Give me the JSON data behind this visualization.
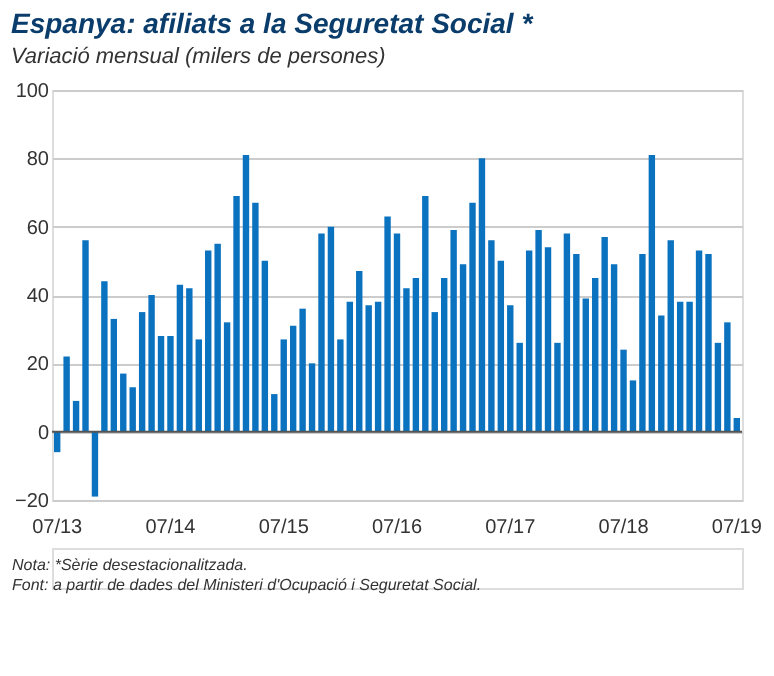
{
  "chart_data": {
    "type": "bar",
    "title": "Espanya: afiliats a la Seguretat Social *",
    "subtitle": "Variació mensual (milers de persones)",
    "categories": [
      "07/13",
      null,
      null,
      null,
      null,
      null,
      null,
      null,
      null,
      null,
      null,
      null,
      "07/14",
      null,
      null,
      null,
      null,
      null,
      null,
      null,
      null,
      null,
      null,
      null,
      "07/15",
      null,
      null,
      null,
      null,
      null,
      null,
      null,
      null,
      null,
      null,
      null,
      "07/16",
      null,
      null,
      null,
      null,
      null,
      null,
      null,
      null,
      null,
      null,
      null,
      "07/17",
      null,
      null,
      null,
      null,
      null,
      null,
      null,
      null,
      null,
      null,
      null,
      "07/18",
      null,
      null,
      null,
      null,
      null,
      null,
      null,
      null,
      null,
      null,
      null,
      "07/19"
    ],
    "values": [
      -6,
      22,
      9,
      56,
      -19,
      44,
      33,
      17,
      13,
      35,
      40,
      28,
      28,
      43,
      42,
      27,
      53,
      55,
      32,
      69,
      81,
      67,
      50,
      11,
      27,
      31,
      36,
      20,
      58,
      60,
      27,
      38,
      47,
      37,
      38,
      63,
      58,
      42,
      45,
      69,
      35,
      45,
      59,
      49,
      67,
      80,
      56,
      50,
      37,
      26,
      53,
      59,
      54,
      26,
      58,
      52,
      39,
      45,
      57,
      49,
      24,
      15,
      52,
      81,
      34,
      56,
      38,
      38,
      53,
      52,
      26,
      32,
      4
    ],
    "color": "#0a72bf",
    "ylim": [
      -20,
      100
    ],
    "yticks": [
      -20,
      0,
      20,
      40,
      60,
      80,
      100
    ],
    "grid": "y",
    "annotations": [
      "Nota: *Sèrie desestacionalitzada.",
      "Font: a partir de dades del Ministeri d'Ocupació i Seguretat Social."
    ]
  }
}
